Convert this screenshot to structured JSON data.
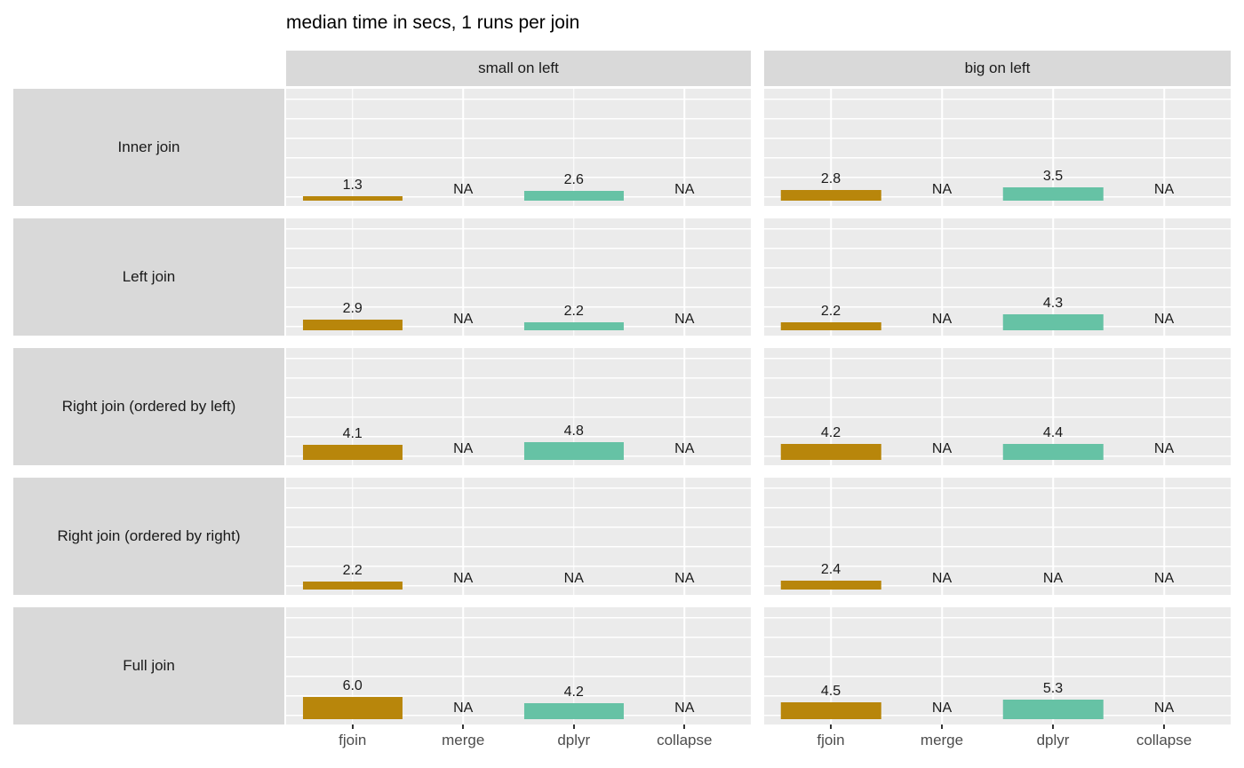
{
  "title": "median time in secs, 1 runs per join",
  "chart_data": {
    "type": "bar",
    "title": "median time in secs, 1 runs per join",
    "facet_columns": [
      "small on left",
      "big on left"
    ],
    "facet_rows": [
      "Inner join",
      "Left join",
      "Right join (ordered by left)",
      "Right join (ordered by right)",
      "Full join"
    ],
    "categories": [
      "fjoin",
      "merge",
      "dplyr",
      "collapse"
    ],
    "na_text": "NA",
    "bar_colors": [
      "#b8860b",
      null,
      "#66c2a5",
      null
    ],
    "legend_position": "none",
    "grid": "on",
    "cells": [
      {
        "row": "Inner join",
        "col": "small on left",
        "values": [
          1.3,
          null,
          2.6,
          null
        ],
        "labels": [
          "1.3",
          "NA",
          "2.6",
          "NA"
        ]
      },
      {
        "row": "Inner join",
        "col": "big on left",
        "values": [
          2.8,
          null,
          3.5,
          null
        ],
        "labels": [
          "2.8",
          "NA",
          "3.5",
          "NA"
        ]
      },
      {
        "row": "Left join",
        "col": "small on left",
        "values": [
          2.9,
          null,
          2.2,
          null
        ],
        "labels": [
          "2.9",
          "NA",
          "2.2",
          "NA"
        ]
      },
      {
        "row": "Left join",
        "col": "big on left",
        "values": [
          2.2,
          null,
          4.3,
          null
        ],
        "labels": [
          "2.2",
          "NA",
          "4.3",
          "NA"
        ]
      },
      {
        "row": "Right join (ordered by left)",
        "col": "small on left",
        "values": [
          4.1,
          null,
          4.8,
          null
        ],
        "labels": [
          "4.1",
          "NA",
          "4.8",
          "NA"
        ]
      },
      {
        "row": "Right join (ordered by left)",
        "col": "big on left",
        "values": [
          4.2,
          null,
          4.4,
          null
        ],
        "labels": [
          "4.2",
          "NA",
          "4.4",
          "NA"
        ]
      },
      {
        "row": "Right join (ordered by right)",
        "col": "small on left",
        "values": [
          2.2,
          null,
          null,
          null
        ],
        "labels": [
          "2.2",
          "NA",
          "NA",
          "NA"
        ]
      },
      {
        "row": "Right join (ordered by right)",
        "col": "big on left",
        "values": [
          2.4,
          null,
          null,
          null
        ],
        "labels": [
          "2.4",
          "NA",
          "NA",
          "NA"
        ]
      },
      {
        "row": "Full join",
        "col": "small on left",
        "values": [
          6.0,
          null,
          4.2,
          null
        ],
        "labels": [
          "6.0",
          "NA",
          "4.2",
          "NA"
        ]
      },
      {
        "row": "Full join",
        "col": "big on left",
        "values": [
          4.5,
          null,
          5.3,
          null
        ],
        "labels": [
          "4.5",
          "NA",
          "5.3",
          "NA"
        ]
      }
    ]
  },
  "style": {
    "panel_bg": "#ebebeb",
    "strip_bg": "#d9d9d9",
    "gridline": "#ffffff",
    "axis_text": "#4d4d4d",
    "tick": "#333333",
    "value_text": "#1a1a1a",
    "fjoin_color": "#b8860b",
    "dplyr_color": "#66c2a5"
  }
}
